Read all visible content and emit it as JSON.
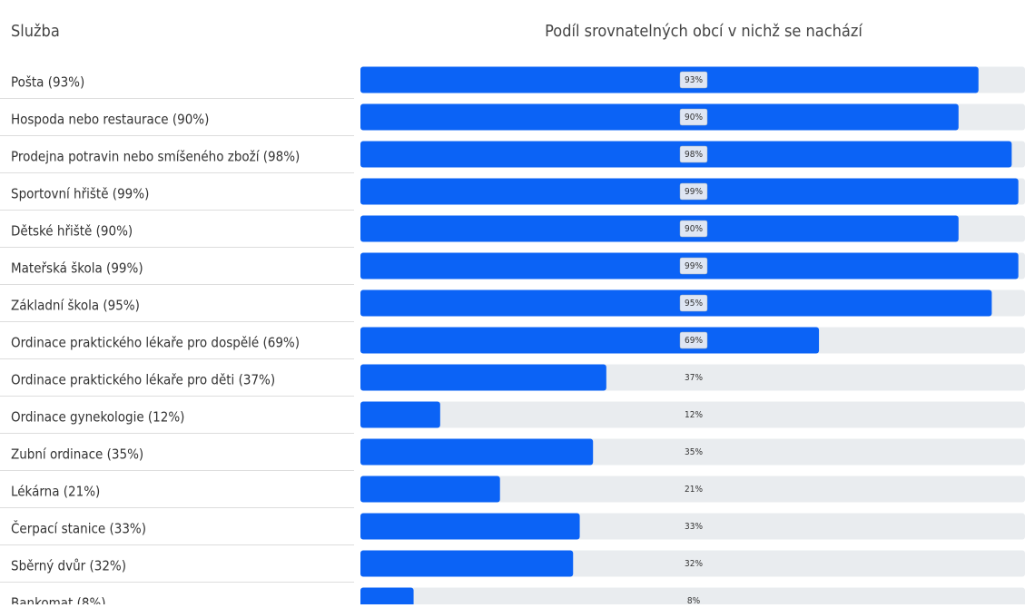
{
  "chart_data": {
    "type": "bar",
    "orientation": "horizontal",
    "category_header": "Služba",
    "value_header": "Podíl srovnatelných obcí v nichž se nachází",
    "categories": [
      "Pošta (93%)",
      "Hospoda nebo restaurace (90%)",
      "Prodejna potravin nebo smíšeného zboží (98%)",
      "Sportovní hřiště (99%)",
      "Dětské hřiště (90%)",
      "Mateřská škola (99%)",
      "Základní škola (95%)",
      "Ordinace praktického lékaře pro dospělé (69%)",
      "Ordinace praktického lékaře pro děti (37%)",
      "Ordinace gynekologie (12%)",
      "Zubní ordinace (35%)",
      "Lékárna (21%)",
      "Čerpací stanice (33%)",
      "Sběrný dvůr (32%)",
      "Bankomat (8%)"
    ],
    "values": [
      93,
      90,
      98,
      99,
      90,
      99,
      95,
      69,
      37,
      12,
      35,
      21,
      33,
      32,
      8
    ],
    "value_labels": [
      "93%",
      "90%",
      "98%",
      "99%",
      "90%",
      "99%",
      "95%",
      "69%",
      "37%",
      "12%",
      "35%",
      "21%",
      "33%",
      "32%",
      "8%"
    ],
    "xlim": [
      0,
      100
    ],
    "color": "#0b63f6",
    "track_color": "#e9ecef"
  }
}
